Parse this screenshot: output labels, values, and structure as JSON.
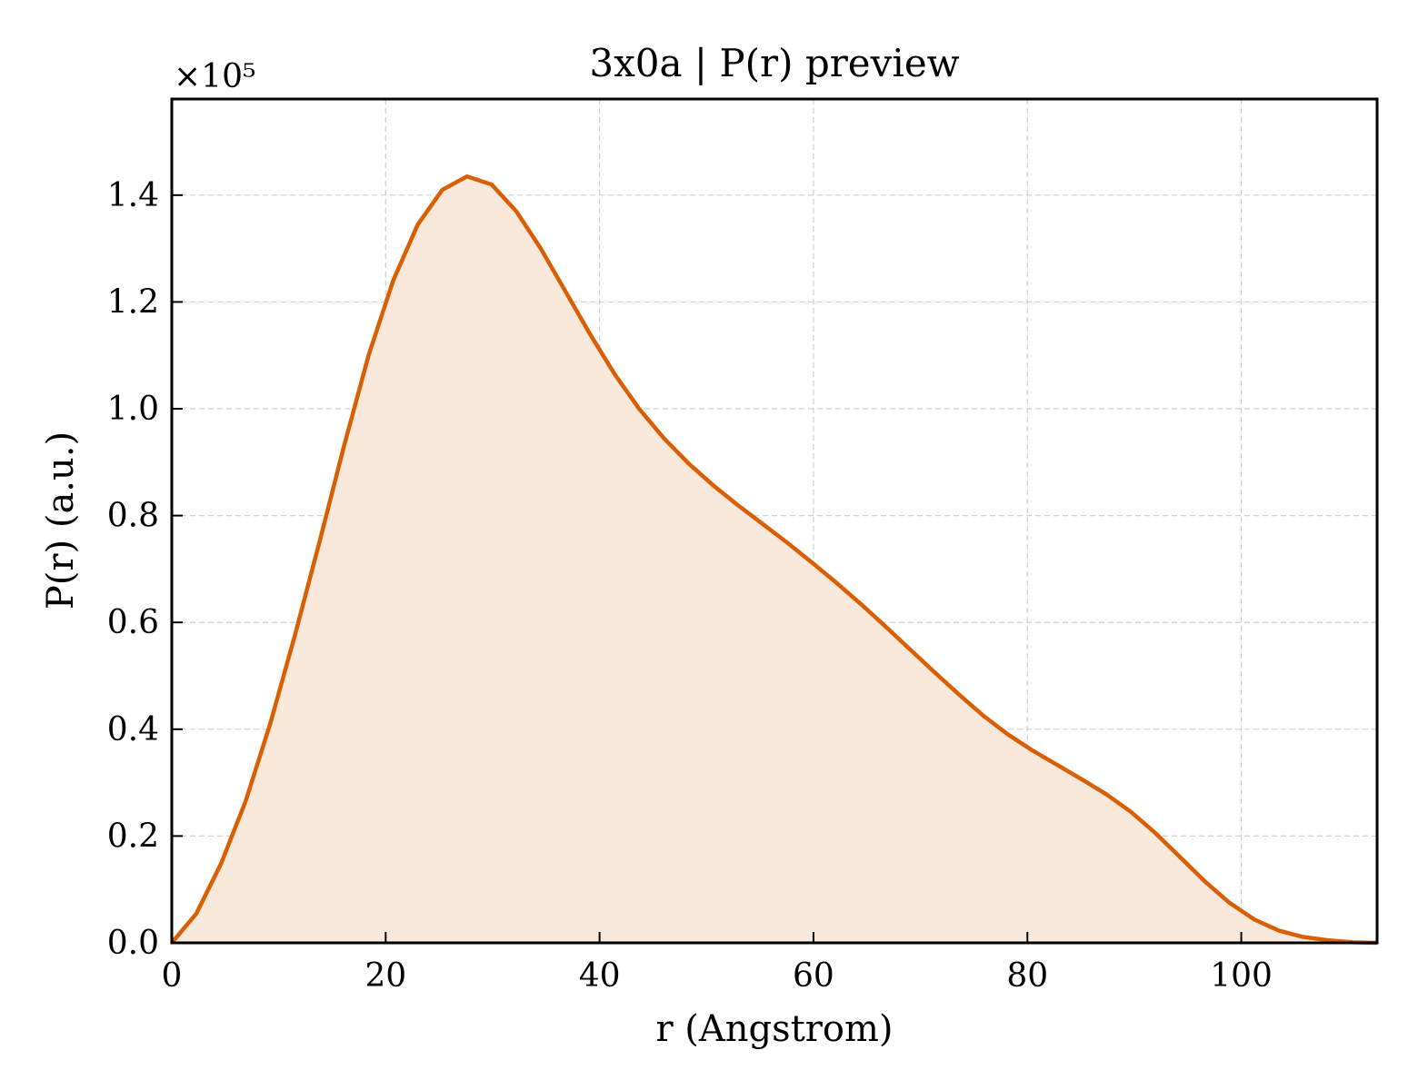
{
  "chart_data": {
    "type": "area",
    "title": "3x0a | P(r) preview",
    "xlabel": "r (Angstrom)",
    "ylabel": "P(r) (a.u.)",
    "y_multiplier_label": "×10⁵",
    "xlim": [
      0,
      112.7
    ],
    "ylim": [
      0,
      1.58
    ],
    "xticks": [
      0,
      20,
      40,
      60,
      80,
      100
    ],
    "yticks": [
      0.0,
      0.2,
      0.4,
      0.6,
      0.8,
      1.0,
      1.2,
      1.4
    ],
    "xtick_labels": [
      "0",
      "20",
      "40",
      "60",
      "80",
      "100"
    ],
    "ytick_labels": [
      "0.0",
      "0.2",
      "0.4",
      "0.6",
      "0.8",
      "1.0",
      "1.2",
      "1.4"
    ],
    "grid": true,
    "line_color": "#d95f02",
    "fill_color": "#f9e9dd",
    "series": [
      {
        "x": [
          0,
          2.3,
          4.6,
          6.9,
          9.2,
          11.5,
          13.8,
          16.1,
          18.4,
          20.7,
          23.0,
          25.3,
          27.6,
          29.9,
          32.2,
          34.5,
          36.8,
          39.1,
          41.4,
          43.7,
          46.0,
          48.3,
          50.6,
          52.9,
          55.2,
          57.5,
          59.8,
          62.1,
          64.4,
          66.7,
          69.0,
          71.3,
          73.6,
          75.9,
          78.2,
          80.5,
          82.8,
          85.1,
          87.4,
          89.7,
          92.0,
          94.3,
          96.6,
          98.9,
          101.2,
          103.5,
          105.8,
          108.1,
          110.4,
          112.7
        ],
        "y": [
          0.0,
          0.055,
          0.148,
          0.265,
          0.41,
          0.575,
          0.75,
          0.93,
          1.1,
          1.24,
          1.345,
          1.41,
          1.435,
          1.42,
          1.37,
          1.3,
          1.22,
          1.14,
          1.065,
          1.0,
          0.945,
          0.898,
          0.857,
          0.82,
          0.785,
          0.75,
          0.713,
          0.675,
          0.635,
          0.593,
          0.55,
          0.507,
          0.465,
          0.425,
          0.39,
          0.36,
          0.333,
          0.306,
          0.278,
          0.245,
          0.205,
          0.16,
          0.115,
          0.075,
          0.044,
          0.023,
          0.011,
          0.005,
          0.001,
          0.0
        ]
      }
    ]
  }
}
